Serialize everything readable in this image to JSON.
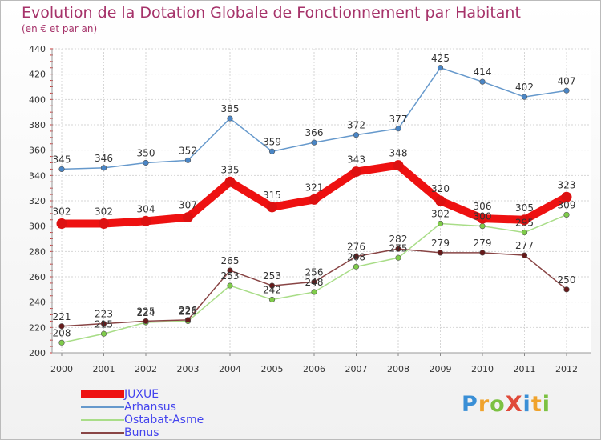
{
  "header": {
    "title": "Evolution de la Dotation Globale de Fonctionnement par Habitant",
    "subtitle": "(en € et par an)"
  },
  "logo": {
    "text": "ProXiti",
    "colors": [
      "#3a8fd6",
      "#f0a32c",
      "#7cc142",
      "#e04a3a",
      "#3a8fd6",
      "#f0a32c",
      "#7cc142"
    ]
  },
  "chart_data": {
    "type": "line",
    "title": "Evolution de la Dotation Globale de Fonctionnement par Habitant",
    "subtitle": "(en € et par an)",
    "x": [
      "2000",
      "2001",
      "2002",
      "2003",
      "2004",
      "2005",
      "2006",
      "2007",
      "2008",
      "2009",
      "2010",
      "2011",
      "2012"
    ],
    "ylim": [
      200,
      440
    ],
    "yticks": [
      200,
      220,
      240,
      260,
      280,
      300,
      320,
      340,
      360,
      380,
      400,
      420,
      440
    ],
    "grid": true,
    "legend": "bottom-left",
    "series": [
      {
        "name": "JUXUE",
        "color": "#ee1111",
        "marker": "#dd1111",
        "thick": true,
        "values": [
          302,
          302,
          304,
          307,
          335,
          315,
          321,
          343,
          348,
          320,
          306,
          305,
          323
        ],
        "labels": [
          "302",
          "302",
          "304",
          "307",
          "335",
          "315",
          "321",
          "343",
          "348",
          "320",
          "306",
          "305",
          "323"
        ]
      },
      {
        "name": "Arhansus",
        "color": "#6699cc",
        "marker": "#4a86c6",
        "thick": false,
        "values": [
          345,
          346,
          350,
          352,
          385,
          359,
          366,
          372,
          377,
          425,
          414,
          402,
          407
        ],
        "labels": [
          "345",
          "346",
          "350",
          "352",
          "385",
          "359",
          "366",
          "372",
          "377",
          "425",
          "414",
          "402",
          "407"
        ]
      },
      {
        "name": "Ostabat-Asme",
        "color": "#a9dd88",
        "marker": "#7fcc4a",
        "thick": false,
        "values": [
          208,
          215,
          224,
          225,
          253,
          242,
          248,
          268,
          275,
          302,
          300,
          295,
          309
        ],
        "labels": [
          "208",
          "215",
          "224",
          "225",
          "253",
          "242",
          "248",
          "268",
          "275",
          "302",
          "300",
          "295",
          "309"
        ]
      },
      {
        "name": "Bunus",
        "color": "#884444",
        "marker": "#661a1a",
        "thick": false,
        "values": [
          221,
          223,
          225,
          226,
          265,
          253,
          256,
          276,
          282,
          279,
          279,
          277,
          250
        ],
        "labels": [
          "221",
          "223",
          "225",
          "226",
          "265",
          "253",
          "256",
          "276",
          "282",
          "279",
          "279",
          "277",
          "250"
        ]
      }
    ]
  }
}
